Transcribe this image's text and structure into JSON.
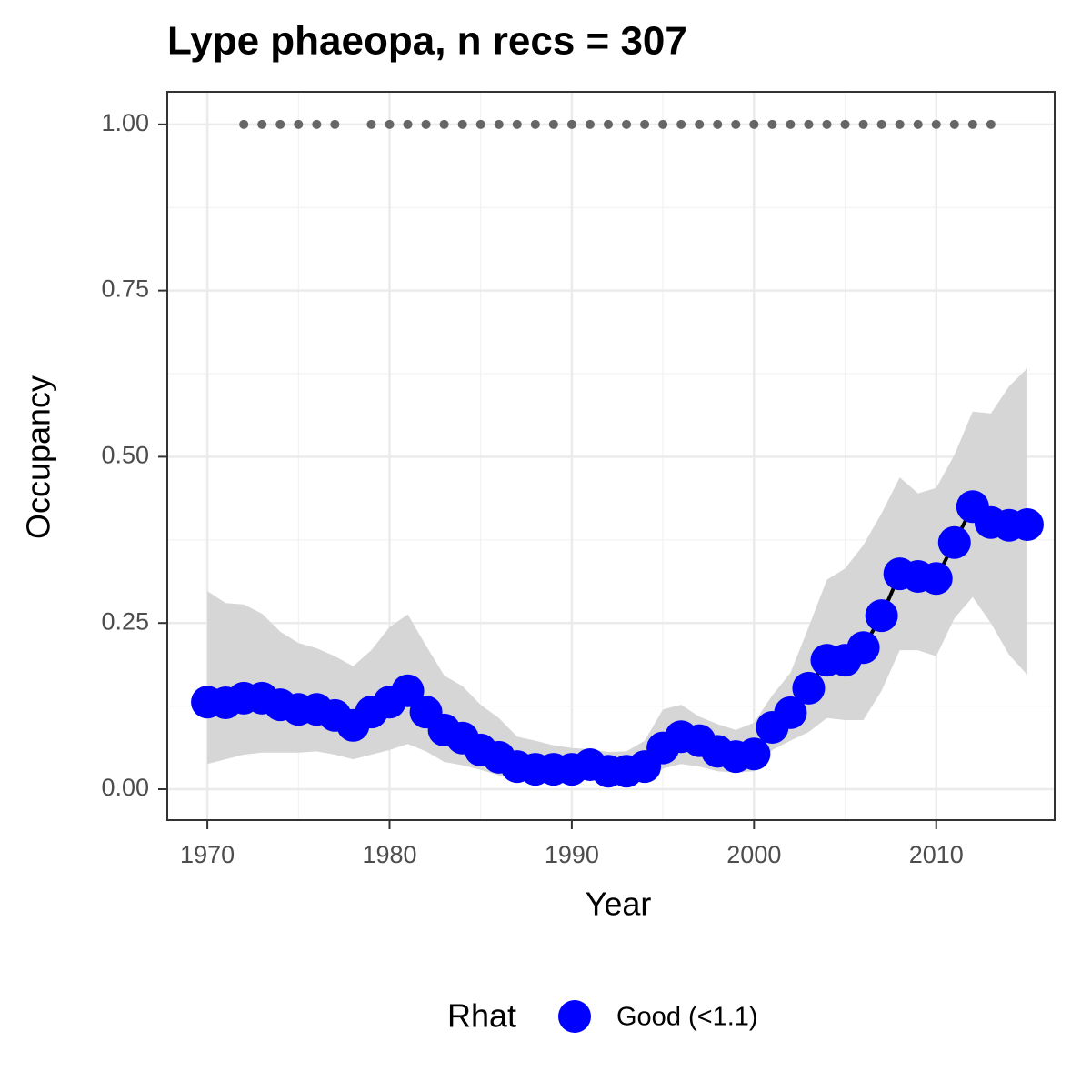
{
  "chart_data": {
    "type": "line",
    "title": "Lype phaeopa, n recs = 307",
    "x_label": "Year",
    "y_label": "Occupancy",
    "x": [
      1970,
      1971,
      1972,
      1973,
      1974,
      1975,
      1976,
      1977,
      1978,
      1979,
      1980,
      1981,
      1982,
      1983,
      1984,
      1985,
      1986,
      1987,
      1988,
      1989,
      1990,
      1991,
      1992,
      1993,
      1994,
      1995,
      1996,
      1997,
      1998,
      1999,
      2000,
      2001,
      2002,
      2003,
      2004,
      2005,
      2006,
      2007,
      2008,
      2009,
      2010,
      2011,
      2012,
      2013,
      2014,
      2015
    ],
    "series": [
      {
        "name": "Good (<1.1)",
        "color": "#0000ff",
        "line_color": "#000000",
        "ribbon_color": "#d6d6d6",
        "values": [
          0.131,
          0.13,
          0.137,
          0.137,
          0.127,
          0.12,
          0.12,
          0.111,
          0.096,
          0.116,
          0.131,
          0.148,
          0.116,
          0.089,
          0.077,
          0.059,
          0.048,
          0.034,
          0.03,
          0.03,
          0.03,
          0.037,
          0.027,
          0.027,
          0.034,
          0.062,
          0.079,
          0.073,
          0.057,
          0.049,
          0.053,
          0.093,
          0.115,
          0.152,
          0.194,
          0.194,
          0.213,
          0.261,
          0.324,
          0.32,
          0.317,
          0.371,
          0.425,
          0.401,
          0.397,
          0.398
        ],
        "upper": [
          0.298,
          0.28,
          0.278,
          0.264,
          0.237,
          0.22,
          0.212,
          0.2,
          0.185,
          0.209,
          0.244,
          0.263,
          0.216,
          0.171,
          0.155,
          0.127,
          0.107,
          0.079,
          0.073,
          0.066,
          0.062,
          0.06,
          0.056,
          0.057,
          0.073,
          0.12,
          0.127,
          0.109,
          0.098,
          0.089,
          0.1,
          0.141,
          0.175,
          0.244,
          0.315,
          0.332,
          0.367,
          0.415,
          0.469,
          0.445,
          0.453,
          0.503,
          0.568,
          0.565,
          0.606,
          0.633
        ],
        "lower": [
          0.038,
          0.045,
          0.052,
          0.055,
          0.055,
          0.055,
          0.057,
          0.052,
          0.045,
          0.052,
          0.059,
          0.068,
          0.057,
          0.041,
          0.036,
          0.029,
          0.021,
          0.015,
          0.014,
          0.014,
          0.014,
          0.014,
          0.012,
          0.012,
          0.015,
          0.031,
          0.038,
          0.034,
          0.027,
          0.025,
          0.027,
          0.059,
          0.073,
          0.086,
          0.107,
          0.104,
          0.104,
          0.148,
          0.209,
          0.209,
          0.2,
          0.257,
          0.289,
          0.25,
          0.202,
          0.172
        ]
      }
    ],
    "records": {
      "color": "#666666",
      "x": [
        1972,
        1973,
        1974,
        1975,
        1976,
        1977,
        1979,
        1980,
        1981,
        1982,
        1983,
        1984,
        1985,
        1986,
        1987,
        1988,
        1989,
        1990,
        1991,
        1992,
        1993,
        1994,
        1995,
        1996,
        1997,
        1998,
        1999,
        2000,
        2001,
        2002,
        2003,
        2004,
        2005,
        2006,
        2007,
        2008,
        2009,
        2010,
        2011,
        2012,
        2013
      ],
      "values": [
        1,
        1,
        1,
        1,
        1,
        1,
        1,
        1,
        1,
        1,
        1,
        1,
        1,
        1,
        1,
        1,
        1,
        1,
        1,
        1,
        1,
        1,
        1,
        1,
        1,
        1,
        1,
        1,
        1,
        1,
        1,
        1,
        1,
        1,
        1,
        1,
        1,
        1,
        1,
        1,
        1
      ]
    },
    "xlim": [
      1967.8,
      2016.5
    ],
    "ylim": [
      -0.0465,
      1.049
    ],
    "xticks": [
      1970,
      1980,
      1990,
      2000,
      2010
    ],
    "yticks": [
      {
        "value": 0,
        "label": "0.00"
      },
      {
        "value": 0.25,
        "label": "0.25"
      },
      {
        "value": 0.5,
        "label": "0.50"
      },
      {
        "value": 0.75,
        "label": "0.75"
      },
      {
        "value": 1,
        "label": "1.00"
      }
    ],
    "grid": true,
    "legend_title": "Rhat",
    "legend_position": "bottom"
  }
}
